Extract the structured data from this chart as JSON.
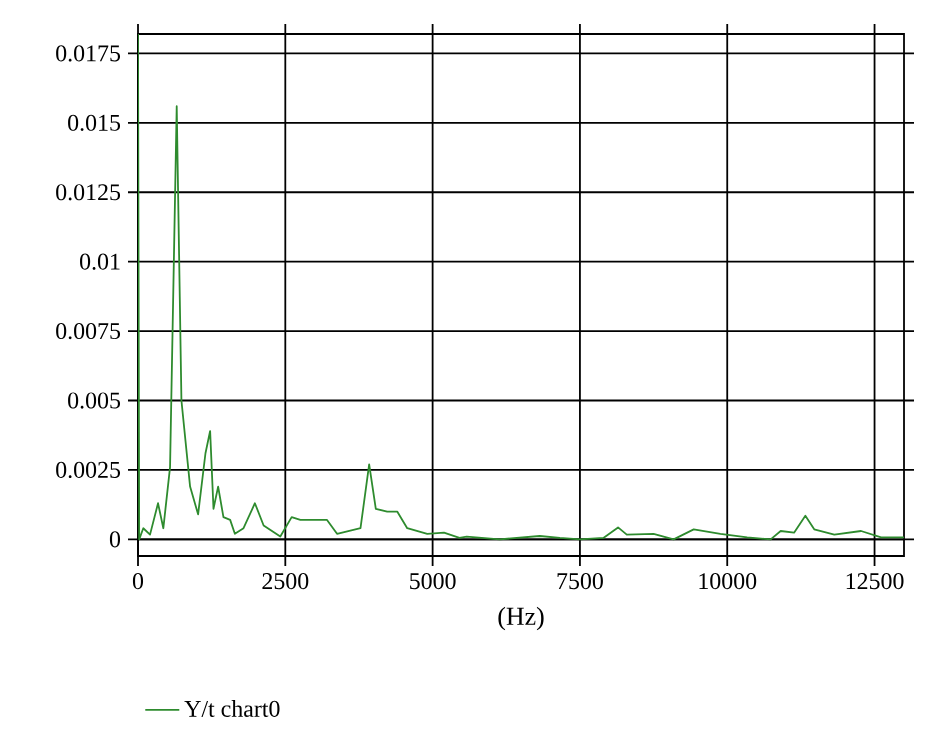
{
  "chart_data": {
    "type": "line",
    "xlabel": "(Hz)",
    "x": [
      0,
      20,
      90,
      204,
      340,
      430,
      544,
      657,
      737,
      884,
      1020,
      1145,
      1224,
      1281,
      1360,
      1450,
      1564,
      1644,
      1791,
      1984,
      2132,
      2415,
      2608,
      2755,
      3208,
      3378,
      3776,
      3923,
      4036,
      4229,
      4399,
      4569,
      4909,
      5193,
      5456,
      5578,
      6137,
      6818,
      7159,
      7500,
      7898,
      8147,
      8295,
      8750,
      9090,
      9431,
      9884,
      10338,
      10737,
      10907,
      11134,
      11326,
      11476,
      11817,
      12271,
      12611,
      13000
    ],
    "series": [
      {
        "name": "Y/t chart0",
        "color": "#2e8b2e",
        "values": [
          0.0182,
          0,
          0.0004,
          0.00017,
          0.0013,
          0.0004,
          0.0026,
          0.0156,
          0.005,
          0.0019,
          0.0009,
          0.0031,
          0.0039,
          0.0011,
          0.0019,
          0.0008,
          0.0007,
          0.0002,
          0.0004,
          0.0013,
          0.0005,
          0.0001,
          0.0008,
          0.0007,
          0.0007,
          0.0002,
          0.0004,
          0.0027,
          0.0011,
          0.001,
          0.001,
          0.0004,
          0.0002,
          0.00024,
          5e-05,
          0.0001,
          0,
          0.00012,
          5e-05,
          0,
          5e-05,
          0.00043,
          0.00017,
          0.0002,
          0,
          0.00036,
          0.0002,
          7e-05,
          0,
          0.0003,
          0.00024,
          0.00085,
          0.00036,
          0.00017,
          0.0003,
          7e-05,
          7e-05
        ]
      }
    ],
    "xlim": [
      0,
      13000
    ],
    "ylim": [
      -0.0006,
      0.0182
    ],
    "xticks": [
      0,
      2500,
      5000,
      7500,
      10000,
      12500
    ],
    "yticks": [
      0,
      0.0025,
      0.005,
      0.0075,
      0.01,
      0.0125,
      0.015,
      0.0175
    ],
    "grid": true,
    "legend": "bottom",
    "marker": "none",
    "line_style": "solid"
  }
}
